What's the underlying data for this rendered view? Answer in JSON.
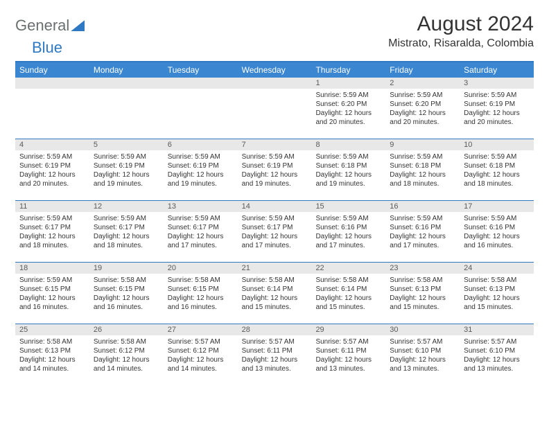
{
  "logo": {
    "text1": "General",
    "text2": "Blue"
  },
  "title": "August 2024",
  "location": "Mistrato, Risaralda, Colombia",
  "day_headers": [
    "Sunday",
    "Monday",
    "Tuesday",
    "Wednesday",
    "Thursday",
    "Friday",
    "Saturday"
  ],
  "colors": {
    "header_bg": "#3a86d0",
    "border": "#2f78c3",
    "date_bar_bg": "#e8e8e8",
    "date_text": "#5a5a5a",
    "body_text": "#333333",
    "logo_gray": "#6a7070"
  },
  "weeks": [
    [
      {
        "date": "",
        "sunrise": "",
        "sunset": "",
        "daylight": ""
      },
      {
        "date": "",
        "sunrise": "",
        "sunset": "",
        "daylight": ""
      },
      {
        "date": "",
        "sunrise": "",
        "sunset": "",
        "daylight": ""
      },
      {
        "date": "",
        "sunrise": "",
        "sunset": "",
        "daylight": ""
      },
      {
        "date": "1",
        "sunrise": "Sunrise: 5:59 AM",
        "sunset": "Sunset: 6:20 PM",
        "daylight": "Daylight: 12 hours and 20 minutes."
      },
      {
        "date": "2",
        "sunrise": "Sunrise: 5:59 AM",
        "sunset": "Sunset: 6:20 PM",
        "daylight": "Daylight: 12 hours and 20 minutes."
      },
      {
        "date": "3",
        "sunrise": "Sunrise: 5:59 AM",
        "sunset": "Sunset: 6:19 PM",
        "daylight": "Daylight: 12 hours and 20 minutes."
      }
    ],
    [
      {
        "date": "4",
        "sunrise": "Sunrise: 5:59 AM",
        "sunset": "Sunset: 6:19 PM",
        "daylight": "Daylight: 12 hours and 20 minutes."
      },
      {
        "date": "5",
        "sunrise": "Sunrise: 5:59 AM",
        "sunset": "Sunset: 6:19 PM",
        "daylight": "Daylight: 12 hours and 19 minutes."
      },
      {
        "date": "6",
        "sunrise": "Sunrise: 5:59 AM",
        "sunset": "Sunset: 6:19 PM",
        "daylight": "Daylight: 12 hours and 19 minutes."
      },
      {
        "date": "7",
        "sunrise": "Sunrise: 5:59 AM",
        "sunset": "Sunset: 6:19 PM",
        "daylight": "Daylight: 12 hours and 19 minutes."
      },
      {
        "date": "8",
        "sunrise": "Sunrise: 5:59 AM",
        "sunset": "Sunset: 6:18 PM",
        "daylight": "Daylight: 12 hours and 19 minutes."
      },
      {
        "date": "9",
        "sunrise": "Sunrise: 5:59 AM",
        "sunset": "Sunset: 6:18 PM",
        "daylight": "Daylight: 12 hours and 18 minutes."
      },
      {
        "date": "10",
        "sunrise": "Sunrise: 5:59 AM",
        "sunset": "Sunset: 6:18 PM",
        "daylight": "Daylight: 12 hours and 18 minutes."
      }
    ],
    [
      {
        "date": "11",
        "sunrise": "Sunrise: 5:59 AM",
        "sunset": "Sunset: 6:17 PM",
        "daylight": "Daylight: 12 hours and 18 minutes."
      },
      {
        "date": "12",
        "sunrise": "Sunrise: 5:59 AM",
        "sunset": "Sunset: 6:17 PM",
        "daylight": "Daylight: 12 hours and 18 minutes."
      },
      {
        "date": "13",
        "sunrise": "Sunrise: 5:59 AM",
        "sunset": "Sunset: 6:17 PM",
        "daylight": "Daylight: 12 hours and 17 minutes."
      },
      {
        "date": "14",
        "sunrise": "Sunrise: 5:59 AM",
        "sunset": "Sunset: 6:17 PM",
        "daylight": "Daylight: 12 hours and 17 minutes."
      },
      {
        "date": "15",
        "sunrise": "Sunrise: 5:59 AM",
        "sunset": "Sunset: 6:16 PM",
        "daylight": "Daylight: 12 hours and 17 minutes."
      },
      {
        "date": "16",
        "sunrise": "Sunrise: 5:59 AM",
        "sunset": "Sunset: 6:16 PM",
        "daylight": "Daylight: 12 hours and 17 minutes."
      },
      {
        "date": "17",
        "sunrise": "Sunrise: 5:59 AM",
        "sunset": "Sunset: 6:16 PM",
        "daylight": "Daylight: 12 hours and 16 minutes."
      }
    ],
    [
      {
        "date": "18",
        "sunrise": "Sunrise: 5:59 AM",
        "sunset": "Sunset: 6:15 PM",
        "daylight": "Daylight: 12 hours and 16 minutes."
      },
      {
        "date": "19",
        "sunrise": "Sunrise: 5:58 AM",
        "sunset": "Sunset: 6:15 PM",
        "daylight": "Daylight: 12 hours and 16 minutes."
      },
      {
        "date": "20",
        "sunrise": "Sunrise: 5:58 AM",
        "sunset": "Sunset: 6:15 PM",
        "daylight": "Daylight: 12 hours and 16 minutes."
      },
      {
        "date": "21",
        "sunrise": "Sunrise: 5:58 AM",
        "sunset": "Sunset: 6:14 PM",
        "daylight": "Daylight: 12 hours and 15 minutes."
      },
      {
        "date": "22",
        "sunrise": "Sunrise: 5:58 AM",
        "sunset": "Sunset: 6:14 PM",
        "daylight": "Daylight: 12 hours and 15 minutes."
      },
      {
        "date": "23",
        "sunrise": "Sunrise: 5:58 AM",
        "sunset": "Sunset: 6:13 PM",
        "daylight": "Daylight: 12 hours and 15 minutes."
      },
      {
        "date": "24",
        "sunrise": "Sunrise: 5:58 AM",
        "sunset": "Sunset: 6:13 PM",
        "daylight": "Daylight: 12 hours and 15 minutes."
      }
    ],
    [
      {
        "date": "25",
        "sunrise": "Sunrise: 5:58 AM",
        "sunset": "Sunset: 6:13 PM",
        "daylight": "Daylight: 12 hours and 14 minutes."
      },
      {
        "date": "26",
        "sunrise": "Sunrise: 5:58 AM",
        "sunset": "Sunset: 6:12 PM",
        "daylight": "Daylight: 12 hours and 14 minutes."
      },
      {
        "date": "27",
        "sunrise": "Sunrise: 5:57 AM",
        "sunset": "Sunset: 6:12 PM",
        "daylight": "Daylight: 12 hours and 14 minutes."
      },
      {
        "date": "28",
        "sunrise": "Sunrise: 5:57 AM",
        "sunset": "Sunset: 6:11 PM",
        "daylight": "Daylight: 12 hours and 13 minutes."
      },
      {
        "date": "29",
        "sunrise": "Sunrise: 5:57 AM",
        "sunset": "Sunset: 6:11 PM",
        "daylight": "Daylight: 12 hours and 13 minutes."
      },
      {
        "date": "30",
        "sunrise": "Sunrise: 5:57 AM",
        "sunset": "Sunset: 6:10 PM",
        "daylight": "Daylight: 12 hours and 13 minutes."
      },
      {
        "date": "31",
        "sunrise": "Sunrise: 5:57 AM",
        "sunset": "Sunset: 6:10 PM",
        "daylight": "Daylight: 12 hours and 13 minutes."
      }
    ]
  ]
}
